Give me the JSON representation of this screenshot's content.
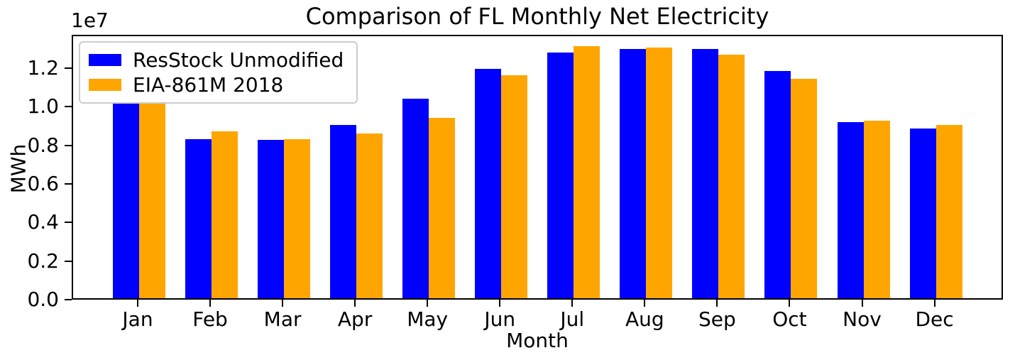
{
  "figure": {
    "title": "Comparison of FL Monthly Net Electricity",
    "offset_text": "1e7",
    "xlabel": "Month",
    "ylabel": "MWh"
  },
  "legend": {
    "position": "upper left",
    "items": [
      {
        "label": "ResStock Unmodified",
        "color": "#0000ff"
      },
      {
        "label": "EIA-861M 2018",
        "color": "#ffa500"
      }
    ]
  },
  "chart_data": {
    "type": "bar",
    "title": "Comparison of FL Monthly Net Electricity",
    "xlabel": "Month",
    "ylabel": "MWh",
    "y_offset_factor": "1e7",
    "grid": false,
    "legend_position": "upper left",
    "categories": [
      "Jan",
      "Feb",
      "Mar",
      "Apr",
      "May",
      "Jun",
      "Jul",
      "Aug",
      "Sep",
      "Oct",
      "Nov",
      "Dec"
    ],
    "series": [
      {
        "name": "ResStock Unmodified",
        "color": "#0000ff",
        "values": [
          10660000,
          8260000,
          8190000,
          8970000,
          10330000,
          11870000,
          12730000,
          12900000,
          12900000,
          11760000,
          9120000,
          8810000
        ]
      },
      {
        "name": "EIA-861M 2018",
        "color": "#ffa500",
        "values": [
          10450000,
          8650000,
          8240000,
          8540000,
          9360000,
          11540000,
          13050000,
          12990000,
          12620000,
          11390000,
          9200000,
          8970000
        ]
      }
    ],
    "ylim": [
      0,
      13727000
    ],
    "yticks": [
      0,
      2000000,
      4000000,
      6000000,
      8000000,
      10000000,
      12000000
    ],
    "ytick_labels": [
      "0.0",
      "0.2",
      "0.4",
      "0.6",
      "0.8",
      "1.0",
      "1.2"
    ]
  }
}
